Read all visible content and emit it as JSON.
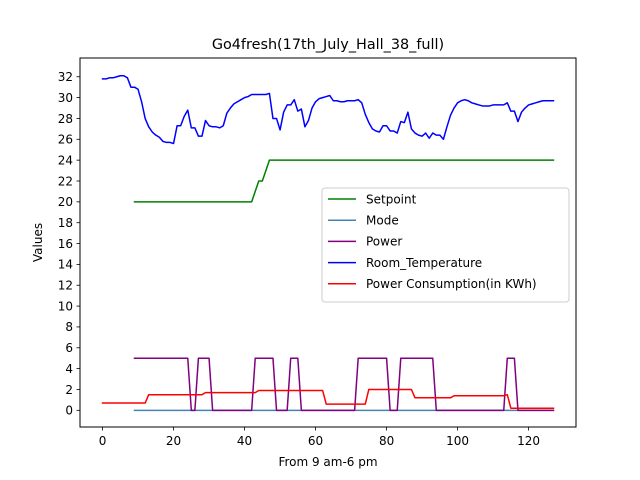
{
  "chart_data": {
    "type": "line",
    "title": "Go4fresh(17th_July_Hall_38_full)",
    "xlabel": "From 9 am-6 pm",
    "ylabel": "Values",
    "xlim": [
      -6.35,
      133.35
    ],
    "ylim": [
      -1.6,
      33.8
    ],
    "xticks": [
      0,
      20,
      40,
      60,
      80,
      100,
      120
    ],
    "yticks": [
      0,
      2,
      4,
      6,
      8,
      10,
      12,
      14,
      16,
      18,
      20,
      22,
      24,
      26,
      28,
      30,
      32
    ],
    "grid": false,
    "legend_position": "center-right",
    "series": [
      {
        "name": "Setpoint",
        "color": "#008000",
        "points": [
          [
            9,
            20
          ],
          [
            42,
            20
          ],
          [
            43,
            21
          ],
          [
            44,
            22
          ],
          [
            45,
            22
          ],
          [
            46,
            23
          ],
          [
            47,
            24
          ],
          [
            127,
            24
          ]
        ]
      },
      {
        "name": "Mode",
        "color": "#4682b4",
        "points": [
          [
            9,
            0
          ],
          [
            127,
            0
          ]
        ]
      },
      {
        "name": "Power",
        "color": "#800080",
        "points": [
          [
            9,
            5
          ],
          [
            24,
            5
          ],
          [
            25,
            0
          ],
          [
            26,
            0
          ],
          [
            27,
            5
          ],
          [
            30,
            5
          ],
          [
            31,
            0
          ],
          [
            42,
            0
          ],
          [
            43,
            5
          ],
          [
            48,
            5
          ],
          [
            49,
            0
          ],
          [
            52,
            0
          ],
          [
            53,
            5
          ],
          [
            55,
            5
          ],
          [
            56,
            0
          ],
          [
            71,
            0
          ],
          [
            72,
            5
          ],
          [
            80,
            5
          ],
          [
            81,
            0
          ],
          [
            83,
            0
          ],
          [
            84,
            5
          ],
          [
            93,
            5
          ],
          [
            94,
            0
          ],
          [
            113,
            0
          ],
          [
            114,
            5
          ],
          [
            116,
            5
          ],
          [
            117,
            0
          ],
          [
            127,
            0
          ]
        ]
      },
      {
        "name": "Room_Temperature",
        "color": "#0000ff",
        "points": [
          [
            0,
            31.8
          ],
          [
            1,
            31.8
          ],
          [
            2,
            31.9
          ],
          [
            3,
            31.9
          ],
          [
            4,
            32
          ],
          [
            5,
            32.1
          ],
          [
            6,
            32.1
          ],
          [
            7,
            31.9
          ],
          [
            8,
            31
          ],
          [
            9,
            31
          ],
          [
            10,
            30.8
          ],
          [
            11,
            29.6
          ],
          [
            12,
            28
          ],
          [
            13,
            27.2
          ],
          [
            14,
            26.7
          ],
          [
            15,
            26.4
          ],
          [
            16,
            26.2
          ],
          [
            17,
            25.8
          ],
          [
            18,
            25.7
          ],
          [
            19,
            25.7
          ],
          [
            20,
            25.6
          ],
          [
            21,
            27.3
          ],
          [
            22,
            27.3
          ],
          [
            23,
            28.2
          ],
          [
            24,
            28.8
          ],
          [
            25,
            27.1
          ],
          [
            26,
            27.1
          ],
          [
            27,
            26.3
          ],
          [
            28,
            26.3
          ],
          [
            29,
            27.8
          ],
          [
            30,
            27.3
          ],
          [
            31,
            27.2
          ],
          [
            32,
            27.2
          ],
          [
            33,
            27.1
          ],
          [
            34,
            27.3
          ],
          [
            35,
            28.5
          ],
          [
            36,
            29
          ],
          [
            37,
            29.4
          ],
          [
            38,
            29.6
          ],
          [
            39,
            29.8
          ],
          [
            40,
            30
          ],
          [
            41,
            30.1
          ],
          [
            42,
            30.3
          ],
          [
            43,
            30.3
          ],
          [
            44,
            30.3
          ],
          [
            45,
            30.3
          ],
          [
            46,
            30.3
          ],
          [
            47,
            30.4
          ],
          [
            48,
            28
          ],
          [
            49,
            28
          ],
          [
            50,
            26.9
          ],
          [
            51,
            28.6
          ],
          [
            52,
            29.3
          ],
          [
            53,
            29.3
          ],
          [
            54,
            29.8
          ],
          [
            55,
            28.7
          ],
          [
            56,
            28.9
          ],
          [
            57,
            27.2
          ],
          [
            58,
            27.8
          ],
          [
            59,
            29
          ],
          [
            60,
            29.6
          ],
          [
            61,
            29.9
          ],
          [
            62,
            30
          ],
          [
            63,
            30.1
          ],
          [
            64,
            30.2
          ],
          [
            65,
            29.7
          ],
          [
            66,
            29.7
          ],
          [
            67,
            29.6
          ],
          [
            68,
            29.6
          ],
          [
            69,
            29.7
          ],
          [
            70,
            29.7
          ],
          [
            71,
            29.7
          ],
          [
            72,
            29.8
          ],
          [
            73,
            29.5
          ],
          [
            74,
            28.4
          ],
          [
            75,
            27.6
          ],
          [
            76,
            27
          ],
          [
            77,
            26.8
          ],
          [
            78,
            26.7
          ],
          [
            79,
            27.3
          ],
          [
            80,
            27.3
          ],
          [
            81,
            26.8
          ],
          [
            82,
            26.8
          ],
          [
            83,
            26.6
          ],
          [
            84,
            27.7
          ],
          [
            85,
            27.6
          ],
          [
            86,
            28.6
          ],
          [
            87,
            27
          ],
          [
            88,
            26.6
          ],
          [
            89,
            26.4
          ],
          [
            90,
            26.3
          ],
          [
            91,
            26.6
          ],
          [
            92,
            26.1
          ],
          [
            93,
            26.6
          ],
          [
            94,
            26.4
          ],
          [
            95,
            26.4
          ],
          [
            96,
            26
          ],
          [
            97,
            27.2
          ],
          [
            98,
            28.3
          ],
          [
            99,
            29
          ],
          [
            100,
            29.5
          ],
          [
            101,
            29.7
          ],
          [
            102,
            29.8
          ],
          [
            103,
            29.7
          ],
          [
            104,
            29.5
          ],
          [
            105,
            29.4
          ],
          [
            106,
            29.3
          ],
          [
            107,
            29.2
          ],
          [
            108,
            29.2
          ],
          [
            109,
            29.2
          ],
          [
            110,
            29.3
          ],
          [
            111,
            29.3
          ],
          [
            112,
            29.3
          ],
          [
            113,
            29.3
          ],
          [
            114,
            29.5
          ],
          [
            115,
            28.7
          ],
          [
            116,
            28.7
          ],
          [
            117,
            27.7
          ],
          [
            118,
            28.6
          ],
          [
            119,
            29
          ],
          [
            120,
            29.3
          ],
          [
            121,
            29.4
          ],
          [
            122,
            29.5
          ],
          [
            123,
            29.6
          ],
          [
            124,
            29.7
          ],
          [
            125,
            29.7
          ],
          [
            126,
            29.7
          ],
          [
            127,
            29.7
          ]
        ]
      },
      {
        "name": "Power Consumption(in KWh)",
        "color": "#ff0000",
        "points": [
          [
            0,
            0.7
          ],
          [
            12,
            0.7
          ],
          [
            13,
            1.5
          ],
          [
            28,
            1.5
          ],
          [
            29,
            1.7
          ],
          [
            43,
            1.7
          ],
          [
            44,
            1.9
          ],
          [
            62,
            1.9
          ],
          [
            63,
            0.6
          ],
          [
            74,
            0.6
          ],
          [
            75,
            2
          ],
          [
            87,
            2
          ],
          [
            88,
            1.2
          ],
          [
            98,
            1.2
          ],
          [
            99,
            1.4
          ],
          [
            113,
            1.4
          ],
          [
            114,
            1.5
          ],
          [
            115,
            0.2
          ],
          [
            127,
            0.2
          ]
        ]
      }
    ]
  }
}
